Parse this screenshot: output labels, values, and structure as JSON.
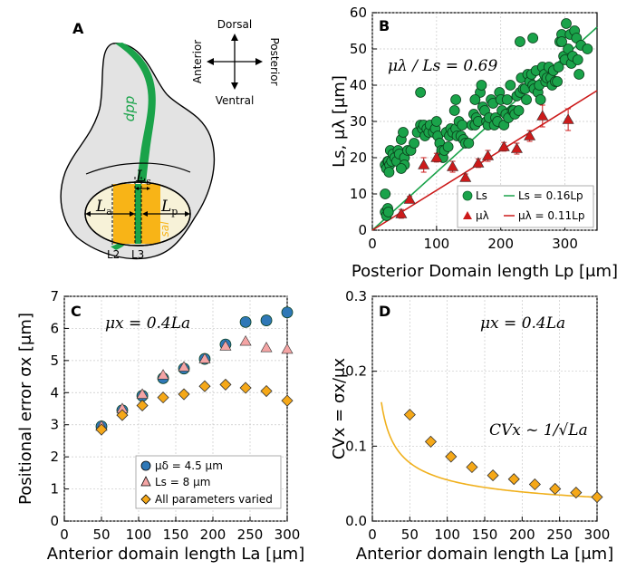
{
  "colors": {
    "green": "#1aa34a",
    "green_dark": "#0d6a2e",
    "red": "#cc1a1a",
    "blue": "#2f78b7",
    "pink": "#f4a4a4",
    "orange": "#f5a818",
    "orange_line": "#f0b01c",
    "wing_fill": "#e3e3e3",
    "disc_fill": "#f7f2d8",
    "stripe": "#f8b417"
  },
  "panel_a": {
    "label": "A",
    "dorsal": "Dorsal",
    "ventral": "Ventral",
    "anterior": "Anterior",
    "posterior": "Posterior",
    "dpp": "dpp",
    "sal": "sal",
    "La": "L",
    "La_sub": "a",
    "Lp": "L",
    "Lp_sub": "p",
    "Ls": "L",
    "Ls_sub": "s",
    "L2": "L2",
    "L3": "L3"
  },
  "annotations": {
    "panel_b": "μλ / Ls = 0.69",
    "panel_c": "μx = 0.4La",
    "panel_d_top": "μx = 0.4La",
    "panel_d_formula": "CVx ~ 1/√La"
  },
  "chart_data": [
    {
      "panel": "B",
      "type": "scatter",
      "title": "",
      "xlabel": "Posterior Domain length Lp [μm]",
      "ylabel": "Ls, μλ [μm]",
      "xlim": [
        0,
        350
      ],
      "ylim": [
        0,
        60
      ],
      "xticks": [
        0,
        100,
        200,
        300
      ],
      "yticks": [
        0,
        10,
        20,
        30,
        40,
        50,
        60
      ],
      "legend_position": "bottom-right",
      "series": [
        {
          "name": "Ls",
          "marker": "circle",
          "color": "#1aa34a",
          "points": [
            [
              20,
              10
            ],
            [
              20,
              18
            ],
            [
              22,
              17
            ],
            [
              24,
              19
            ],
            [
              25,
              19
            ],
            [
              27,
              18
            ],
            [
              30,
              19
            ],
            [
              28,
              22
            ],
            [
              32,
              21
            ],
            [
              35,
              20
            ],
            [
              38,
              19
            ],
            [
              40,
              22
            ],
            [
              42,
              21
            ],
            [
              45,
              25
            ],
            [
              48,
              27
            ],
            [
              50,
              20
            ],
            [
              55,
              22
            ],
            [
              60,
              22
            ],
            [
              65,
              24
            ],
            [
              70,
              27
            ],
            [
              75,
              29
            ],
            [
              78,
              28
            ],
            [
              80,
              29
            ],
            [
              82,
              26
            ],
            [
              85,
              28
            ],
            [
              88,
              27
            ],
            [
              90,
              29
            ],
            [
              95,
              27
            ],
            [
              98,
              28
            ],
            [
              100,
              30
            ],
            [
              102,
              26
            ],
            [
              105,
              24
            ],
            [
              108,
              22
            ],
            [
              110,
              20
            ],
            [
              112,
              22
            ],
            [
              115,
              27
            ],
            [
              118,
              23
            ],
            [
              120,
              26
            ],
            [
              122,
              28
            ],
            [
              125,
              27
            ],
            [
              128,
              33
            ],
            [
              130,
              28
            ],
            [
              132,
              26
            ],
            [
              135,
              30
            ],
            [
              138,
              26
            ],
            [
              140,
              29
            ],
            [
              142,
              25
            ],
            [
              145,
              24
            ],
            [
              150,
              24
            ],
            [
              155,
              29
            ],
            [
              158,
              32
            ],
            [
              160,
              29
            ],
            [
              162,
              31
            ],
            [
              165,
              30
            ],
            [
              168,
              38
            ],
            [
              170,
              40
            ],
            [
              172,
              34
            ],
            [
              175,
              33
            ],
            [
              178,
              30
            ],
            [
              180,
              29
            ],
            [
              182,
              31
            ],
            [
              185,
              36
            ],
            [
              188,
              35
            ],
            [
              190,
              29
            ],
            [
              192,
              31
            ],
            [
              195,
              30
            ],
            [
              198,
              38
            ],
            [
              200,
              36
            ],
            [
              202,
              33
            ],
            [
              205,
              29
            ],
            [
              208,
              32
            ],
            [
              210,
              36
            ],
            [
              212,
              31
            ],
            [
              215,
              40
            ],
            [
              218,
              33
            ],
            [
              220,
              33
            ],
            [
              222,
              32
            ],
            [
              225,
              37
            ],
            [
              228,
              33
            ],
            [
              230,
              38
            ],
            [
              232,
              42
            ],
            [
              235,
              39
            ],
            [
              238,
              39
            ],
            [
              240,
              36
            ],
            [
              242,
              43
            ],
            [
              245,
              41
            ],
            [
              248,
              43
            ],
            [
              250,
              40
            ],
            [
              252,
              39
            ],
            [
              255,
              44
            ],
            [
              258,
              38
            ],
            [
              260,
              40
            ],
            [
              262,
              36
            ],
            [
              265,
              45
            ],
            [
              268,
              43
            ],
            [
              270,
              41
            ],
            [
              272,
              42
            ],
            [
              275,
              45
            ],
            [
              278,
              42
            ],
            [
              280,
              40
            ],
            [
              282,
              44
            ],
            [
              285,
              41
            ],
            [
              288,
              41
            ],
            [
              290,
              45
            ],
            [
              292,
              52
            ],
            [
              295,
              54
            ],
            [
              298,
              48
            ],
            [
              300,
              47
            ],
            [
              302,
              57
            ],
            [
              305,
              50
            ],
            [
              308,
              54
            ],
            [
              310,
              46
            ],
            [
              312,
              48
            ],
            [
              315,
              55
            ],
            [
              318,
              53
            ],
            [
              320,
              47
            ],
            [
              322,
              43
            ],
            [
              325,
              51
            ],
            [
              335,
              50
            ],
            [
              230,
              52
            ],
            [
              250,
              53
            ],
            [
              295,
              52
            ],
            [
              160,
              36
            ],
            [
              130,
              36
            ],
            [
              75,
              38
            ],
            [
              20,
              5
            ],
            [
              22,
              4
            ],
            [
              24,
              6
            ],
            [
              25,
              5
            ],
            [
              50,
              18
            ],
            [
              45,
              17
            ],
            [
              26,
              16
            ]
          ]
        },
        {
          "name": "μλ",
          "marker": "triangle",
          "color": "#cc1a1a",
          "points": [
            [
              45,
              4.5,
              1.2
            ],
            [
              58,
              8.5,
              0.8
            ],
            [
              80,
              18,
              2
            ],
            [
              100,
              20,
              1.2
            ],
            [
              125,
              17.5,
              1.5
            ],
            [
              145,
              14.5,
              1
            ],
            [
              165,
              18.5,
              1.2
            ],
            [
              180,
              20.5,
              1.5
            ],
            [
              205,
              23,
              1.2
            ],
            [
              225,
              22.5,
              1.5
            ],
            [
              245,
              26,
              1.5
            ],
            [
              265,
              31.5,
              3
            ],
            [
              305,
              30.5,
              3
            ]
          ]
        }
      ],
      "fit_lines": [
        {
          "label": "Ls = 0.16Lp",
          "slope": 0.16,
          "color": "#1aa34a"
        },
        {
          "label": "μλ = 0.11Lp",
          "slope": 0.11,
          "color": "#cc1a1a"
        }
      ]
    },
    {
      "panel": "C",
      "type": "scatter",
      "title": "",
      "xlabel": "Anterior domain length La [μm]",
      "ylabel": "Positional error σx [μm]",
      "xlim": [
        0,
        300
      ],
      "ylim": [
        0,
        7
      ],
      "xticks": [
        0,
        50,
        100,
        150,
        200,
        250,
        300
      ],
      "yticks": [
        0,
        1,
        2,
        3,
        4,
        5,
        6,
        7
      ],
      "legend_position": "bottom-right",
      "x": [
        50,
        78,
        105,
        133,
        161,
        189,
        217,
        244,
        272,
        300
      ],
      "series": [
        {
          "name": "μδ = 4.5 μm",
          "marker": "circle",
          "color": "#2f78b7",
          "values": [
            2.95,
            3.45,
            3.9,
            4.45,
            4.75,
            5.05,
            5.5,
            6.2,
            6.25,
            6.5
          ]
        },
        {
          "name": "Ls = 8 μm",
          "marker": "triangle",
          "color": "#f4a4a4",
          "values": [
            2.95,
            3.5,
            3.95,
            4.55,
            4.8,
            5.05,
            5.45,
            5.6,
            5.4,
            5.35
          ]
        },
        {
          "name": "All parameters varied",
          "marker": "diamond",
          "color": "#f5a818",
          "values": [
            2.85,
            3.3,
            3.6,
            3.85,
            3.95,
            4.2,
            4.25,
            4.15,
            4.05,
            3.75
          ]
        }
      ]
    },
    {
      "panel": "D",
      "type": "line",
      "title": "",
      "xlabel": "Anterior domain length La [μm]",
      "ylabel": "CVx = σx/μx",
      "xlim": [
        0,
        300
      ],
      "ylim": [
        0,
        0.3
      ],
      "xticks": [
        0,
        50,
        100,
        150,
        200,
        250,
        300
      ],
      "yticks": [
        0.0,
        0.1,
        0.2,
        0.3
      ],
      "ytick_labels": [
        "0.0",
        "0.1",
        "0.2",
        "0.3"
      ],
      "x": [
        50,
        78,
        105,
        133,
        161,
        189,
        217,
        244,
        272,
        300
      ],
      "series": [
        {
          "name": "",
          "marker": "diamond",
          "color": "#f5a818",
          "values": [
            0.142,
            0.106,
            0.086,
            0.072,
            0.061,
            0.056,
            0.049,
            0.043,
            0.038,
            0.032
          ]
        }
      ],
      "fit_curve": {
        "form": "a/sqrt(x)",
        "a": 1.0,
        "x_from": 12,
        "x_to": 300,
        "color": "#f0b01c"
      }
    }
  ]
}
